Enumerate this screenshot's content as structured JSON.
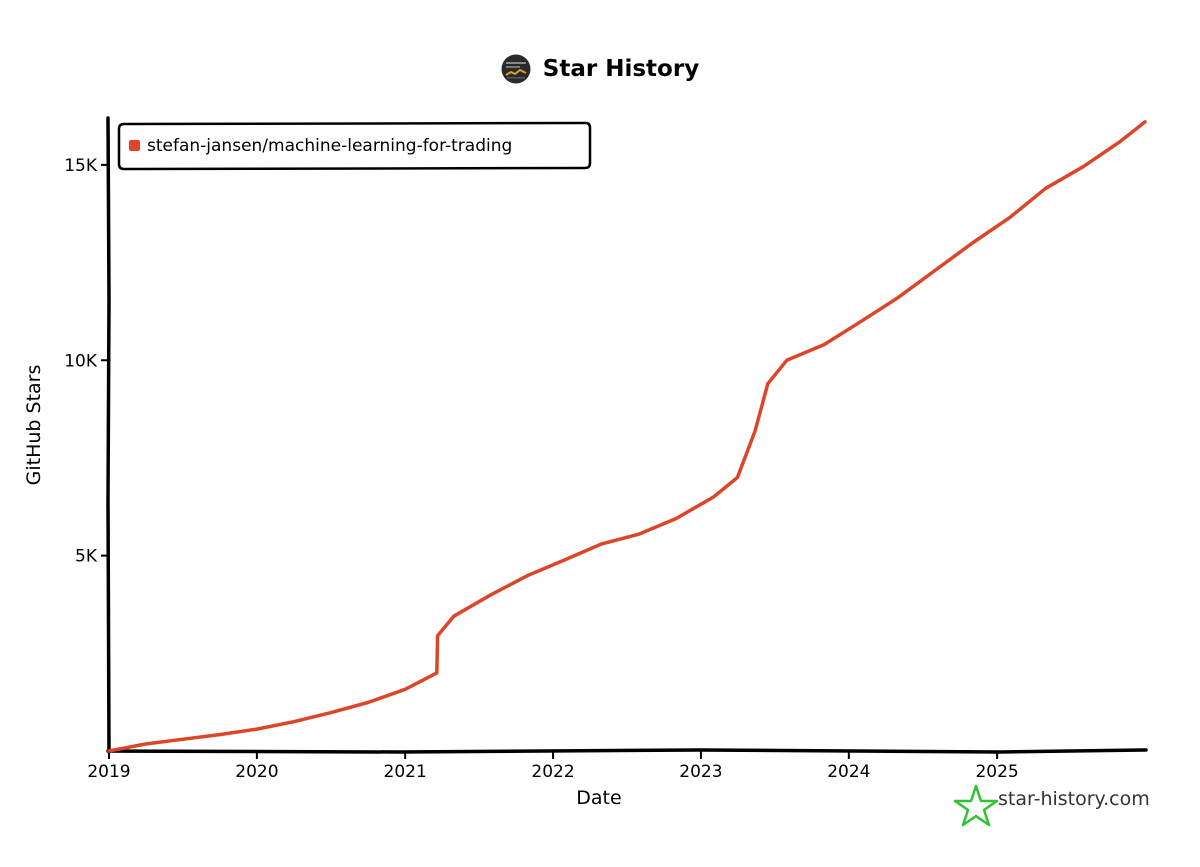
{
  "header": {
    "title": "Star History",
    "avatar_icon": "repo-avatar-icon"
  },
  "watermark": {
    "text": "star-history.com",
    "icon": "star-logo-icon",
    "icon_color": "#2fc42f"
  },
  "colors": {
    "series": "#dd4528",
    "axis": "#000000"
  },
  "chart_data": {
    "type": "line",
    "title": "Star History",
    "xlabel": "Date",
    "ylabel": "GitHub Stars",
    "x_ticks": [
      "2019",
      "2020",
      "2021",
      "2022",
      "2023",
      "2024",
      "2025"
    ],
    "y_ticks": [
      {
        "value": 5000,
        "label": "5K"
      },
      {
        "value": 10000,
        "label": "10K"
      },
      {
        "value": 15000,
        "label": "15K"
      }
    ],
    "xlim": [
      "2019-01-01",
      "2026-01-01"
    ],
    "ylim": [
      0,
      16200
    ],
    "grid": false,
    "legend_position": "top-left",
    "series": [
      {
        "name": "stefan-jansen/machine-learning-for-trading",
        "color": "#dd4528",
        "points": [
          [
            "2019-01-01",
            0
          ],
          [
            "2019-04-01",
            180
          ],
          [
            "2019-07-01",
            300
          ],
          [
            "2019-10-01",
            420
          ],
          [
            "2020-01-01",
            560
          ],
          [
            "2020-04-01",
            750
          ],
          [
            "2020-07-01",
            980
          ],
          [
            "2020-10-01",
            1240
          ],
          [
            "2021-01-01",
            1580
          ],
          [
            "2021-03-20",
            2000
          ],
          [
            "2021-03-22",
            2950
          ],
          [
            "2021-05-01",
            3450
          ],
          [
            "2021-08-01",
            4000
          ],
          [
            "2021-11-01",
            4500
          ],
          [
            "2022-02-01",
            4900
          ],
          [
            "2022-05-01",
            5300
          ],
          [
            "2022-08-01",
            5550
          ],
          [
            "2022-11-01",
            5950
          ],
          [
            "2023-02-01",
            6500
          ],
          [
            "2023-04-01",
            7000
          ],
          [
            "2023-05-15",
            8200
          ],
          [
            "2023-06-15",
            9400
          ],
          [
            "2023-08-01",
            10000
          ],
          [
            "2023-11-01",
            10400
          ],
          [
            "2024-02-01",
            11000
          ],
          [
            "2024-05-01",
            11600
          ],
          [
            "2024-08-01",
            12300
          ],
          [
            "2024-11-01",
            13000
          ],
          [
            "2025-02-01",
            13650
          ],
          [
            "2025-05-01",
            14400
          ],
          [
            "2025-08-01",
            14950
          ],
          [
            "2025-11-01",
            15600
          ],
          [
            "2026-01-01",
            16100
          ]
        ]
      }
    ]
  }
}
